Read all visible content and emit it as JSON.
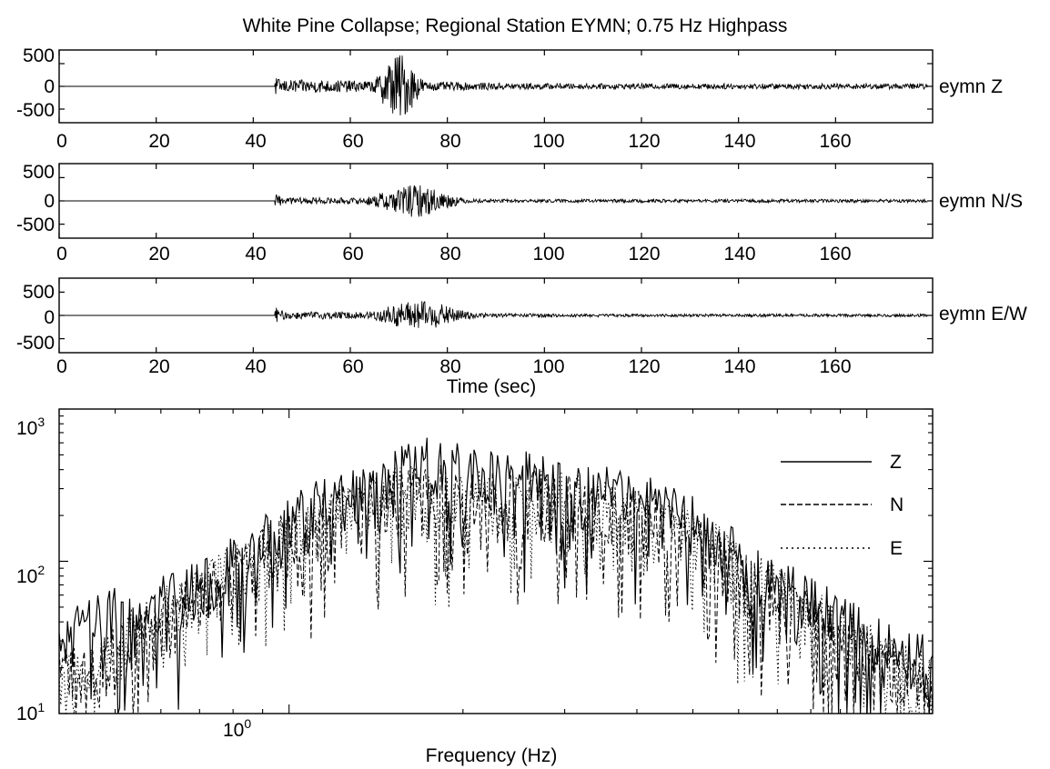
{
  "figure": {
    "title": "White Pine Collapse; Regional Station EYMN; 0.75 Hz Highpass",
    "colors": {
      "ink": "#000000",
      "background": "#ffffff"
    }
  },
  "chart_data": [
    {
      "type": "line",
      "label": "eymn Z",
      "xlim": [
        0,
        180
      ],
      "ylim": [
        -800,
        800
      ],
      "x_ticks": [
        "0",
        "20",
        "40",
        "60",
        "80",
        "100",
        "120",
        "140",
        "160"
      ],
      "y_ticks": [
        "500",
        "0",
        "-500"
      ],
      "y_tick_values": [
        500,
        0,
        -500
      ],
      "xlabel": "",
      "signal": {
        "onset_sec": 44.5,
        "onset_amp": 220,
        "coda_amp": 140,
        "peak_sec": 70,
        "peak_amp": 750,
        "peak_width_sec": 4,
        "late_amp": 60,
        "end_sec": 179
      }
    },
    {
      "type": "line",
      "label": "eymn N/S",
      "xlim": [
        0,
        180
      ],
      "ylim": [
        -800,
        800
      ],
      "x_ticks": [
        "0",
        "20",
        "40",
        "60",
        "80",
        "100",
        "120",
        "140",
        "160"
      ],
      "y_ticks": [
        "500",
        "0",
        "-500"
      ],
      "y_tick_values": [
        500,
        0,
        -500
      ],
      "xlabel": "",
      "signal": {
        "onset_sec": 44.5,
        "onset_amp": 160,
        "coda_amp": 70,
        "peak_sec": 73,
        "peak_amp": 350,
        "peak_width_sec": 8,
        "late_amp": 35,
        "end_sec": 179
      }
    },
    {
      "type": "line",
      "label": "eymn E/W",
      "xlim": [
        0,
        180
      ],
      "ylim": [
        -800,
        800
      ],
      "x_ticks": [
        "0",
        "20",
        "40",
        "60",
        "80",
        "100",
        "120",
        "140",
        "160"
      ],
      "y_ticks": [
        "500",
        "0",
        "-500"
      ],
      "y_tick_values": [
        500,
        0,
        -500
      ],
      "xlabel": "Time (sec)",
      "signal": {
        "onset_sec": 44.5,
        "onset_amp": 180,
        "coda_amp": 80,
        "peak_sec": 74,
        "peak_amp": 320,
        "peak_width_sec": 9,
        "late_amp": 30,
        "end_sec": 179
      }
    },
    {
      "type": "line",
      "scale": "log-log",
      "xlim": [
        0.4,
        13
      ],
      "ylim": [
        10,
        1000
      ],
      "xlabel": "Frequency (Hz)",
      "x_ticks": [
        {
          "base": "10",
          "exp": "0",
          "value": 1
        }
      ],
      "y_ticks": [
        {
          "base": "10",
          "exp": "3",
          "value": 1000
        },
        {
          "base": "10",
          "exp": "2",
          "value": 100
        },
        {
          "base": "10",
          "exp": "1",
          "value": 10
        }
      ],
      "legend": {
        "position": "top-right",
        "entries": [
          "Z",
          "N",
          "E"
        ]
      },
      "series": [
        {
          "name": "Z",
          "style": "solid",
          "freq": [
            0.4,
            0.45,
            0.5,
            0.55,
            0.6,
            0.7,
            0.8,
            0.9,
            1.0,
            1.1,
            1.2,
            1.4,
            1.6,
            1.8,
            2.0,
            2.3,
            2.6,
            3.0,
            3.4,
            3.8,
            4.2,
            4.6,
            5.0,
            5.5,
            6.0,
            7.0,
            8.0,
            9.0,
            10.0,
            11.0,
            12.0,
            13.0
          ],
          "amp": [
            30,
            45,
            50,
            40,
            60,
            85,
            110,
            150,
            200,
            250,
            280,
            350,
            480,
            500,
            450,
            380,
            400,
            350,
            320,
            300,
            280,
            250,
            200,
            150,
            120,
            80,
            60,
            45,
            35,
            30,
            28,
            25
          ]
        },
        {
          "name": "N",
          "style": "dashed",
          "freq": [
            0.4,
            0.45,
            0.5,
            0.55,
            0.6,
            0.7,
            0.8,
            0.9,
            1.0,
            1.1,
            1.2,
            1.4,
            1.6,
            1.8,
            2.0,
            2.3,
            2.6,
            3.0,
            3.4,
            3.8,
            4.2,
            4.6,
            5.0,
            5.5,
            6.0,
            7.0,
            8.0,
            9.0,
            10.0,
            11.0,
            12.0,
            13.0
          ],
          "amp": [
            25,
            20,
            28,
            35,
            45,
            70,
            90,
            120,
            170,
            200,
            230,
            260,
            300,
            320,
            300,
            280,
            300,
            280,
            250,
            230,
            210,
            180,
            150,
            120,
            90,
            65,
            45,
            35,
            28,
            22,
            20,
            18
          ]
        },
        {
          "name": "E",
          "style": "dotted",
          "freq": [
            0.4,
            0.45,
            0.5,
            0.55,
            0.6,
            0.7,
            0.8,
            0.9,
            1.0,
            1.1,
            1.2,
            1.4,
            1.6,
            1.8,
            2.0,
            2.3,
            2.6,
            3.0,
            3.4,
            3.8,
            4.2,
            4.6,
            5.0,
            5.5,
            6.0,
            7.0,
            8.0,
            9.0,
            10.0,
            11.0,
            12.0,
            13.0
          ],
          "amp": [
            20,
            22,
            30,
            38,
            50,
            75,
            100,
            130,
            180,
            210,
            240,
            270,
            320,
            330,
            310,
            290,
            310,
            290,
            260,
            240,
            220,
            190,
            160,
            130,
            100,
            70,
            50,
            38,
            30,
            25,
            22,
            20
          ]
        }
      ]
    }
  ]
}
